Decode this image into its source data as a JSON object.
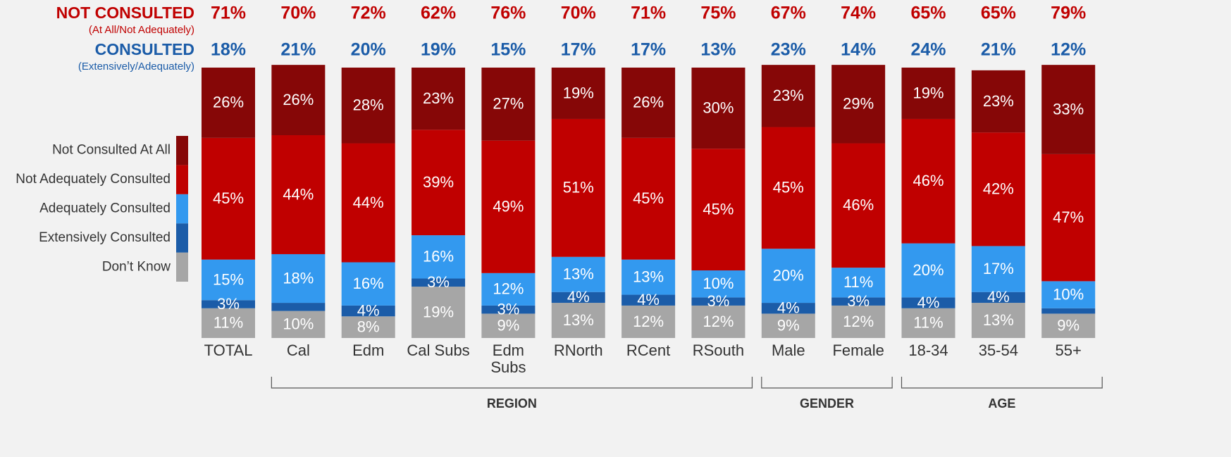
{
  "chart_data": {
    "type": "bar",
    "stacked": true,
    "categories": [
      "TOTAL",
      "Cal",
      "Edm",
      "Cal Subs",
      "Edm Subs",
      "RNorth",
      "RCent",
      "RSouth",
      "Male",
      "Female",
      "18-34",
      "35-54",
      "55+"
    ],
    "ylim": [
      0,
      100
    ],
    "series": [
      {
        "name": "Don’t Know",
        "color": "#a6a6a6",
        "values": [
          11,
          10,
          8,
          19,
          9,
          13,
          12,
          12,
          9,
          12,
          11,
          13,
          9
        ],
        "value_labels": [
          "11%",
          "10%",
          "8%",
          "19%",
          "9%",
          "13%",
          "12%",
          "12%",
          "9%",
          "12%",
          "11%",
          "13%",
          "9%"
        ]
      },
      {
        "name": "Extensively Consulted",
        "color": "#1b5ca8",
        "values": [
          3,
          3,
          4,
          3,
          3,
          4,
          4,
          3,
          4,
          3,
          4,
          4,
          2
        ],
        "value_labels": [
          "3%",
          null,
          "4%",
          "3%",
          "3%",
          "4%",
          "4%",
          "3%",
          "4%",
          "3%",
          "4%",
          "4%",
          null
        ]
      },
      {
        "name": "Adequately Consulted",
        "color": "#3399ef",
        "values": [
          15,
          18,
          16,
          16,
          12,
          13,
          13,
          10,
          20,
          11,
          20,
          17,
          10
        ],
        "value_labels": [
          "15%",
          "18%",
          "16%",
          "16%",
          "12%",
          "13%",
          "13%",
          "10%",
          "20%",
          "11%",
          "20%",
          "17%",
          "10%"
        ]
      },
      {
        "name": "Not Adequately Consulted",
        "color": "#c00000",
        "values": [
          45,
          44,
          44,
          39,
          49,
          51,
          45,
          45,
          45,
          46,
          46,
          42,
          47
        ],
        "value_labels": [
          "45%",
          "44%",
          "44%",
          "39%",
          "49%",
          "51%",
          "45%",
          "45%",
          "45%",
          "46%",
          "46%",
          "42%",
          "47%"
        ]
      },
      {
        "name": "Not Consulted At All",
        "color": "#860707",
        "values": [
          26,
          26,
          28,
          23,
          27,
          19,
          26,
          30,
          23,
          29,
          19,
          23,
          33
        ],
        "value_labels": [
          "26%",
          "26%",
          "28%",
          "23%",
          "27%",
          "19%",
          "26%",
          "30%",
          "23%",
          "29%",
          "19%",
          "23%",
          "33%"
        ]
      }
    ],
    "summary": [
      {
        "label": "NOT CONSULTED",
        "sublabel": "(At All/Not Adequately)",
        "color": "#c00000",
        "values": [
          71,
          70,
          72,
          62,
          76,
          70,
          71,
          75,
          67,
          74,
          65,
          65,
          79
        ],
        "value_labels": [
          "71%",
          "70%",
          "72%",
          "62%",
          "76%",
          "70%",
          "71%",
          "75%",
          "67%",
          "74%",
          "65%",
          "65%",
          "79%"
        ]
      },
      {
        "label": "CONSULTED",
        "sublabel": "(Extensively/Adequately)",
        "color": "#1b5ca8",
        "values": [
          18,
          21,
          20,
          19,
          15,
          17,
          17,
          13,
          23,
          14,
          24,
          21,
          12
        ],
        "value_labels": [
          "18%",
          "21%",
          "20%",
          "19%",
          "15%",
          "17%",
          "17%",
          "13%",
          "23%",
          "14%",
          "24%",
          "21%",
          "12%"
        ]
      }
    ],
    "groups": [
      {
        "label": "REGION",
        "categories": [
          "Cal",
          "Edm",
          "Cal Subs",
          "Edm Subs",
          "RNorth",
          "RCent",
          "RSouth"
        ]
      },
      {
        "label": "GENDER",
        "categories": [
          "Male",
          "Female"
        ]
      },
      {
        "label": "AGE",
        "categories": [
          "18-34",
          "35-54",
          "55+"
        ]
      }
    ]
  }
}
